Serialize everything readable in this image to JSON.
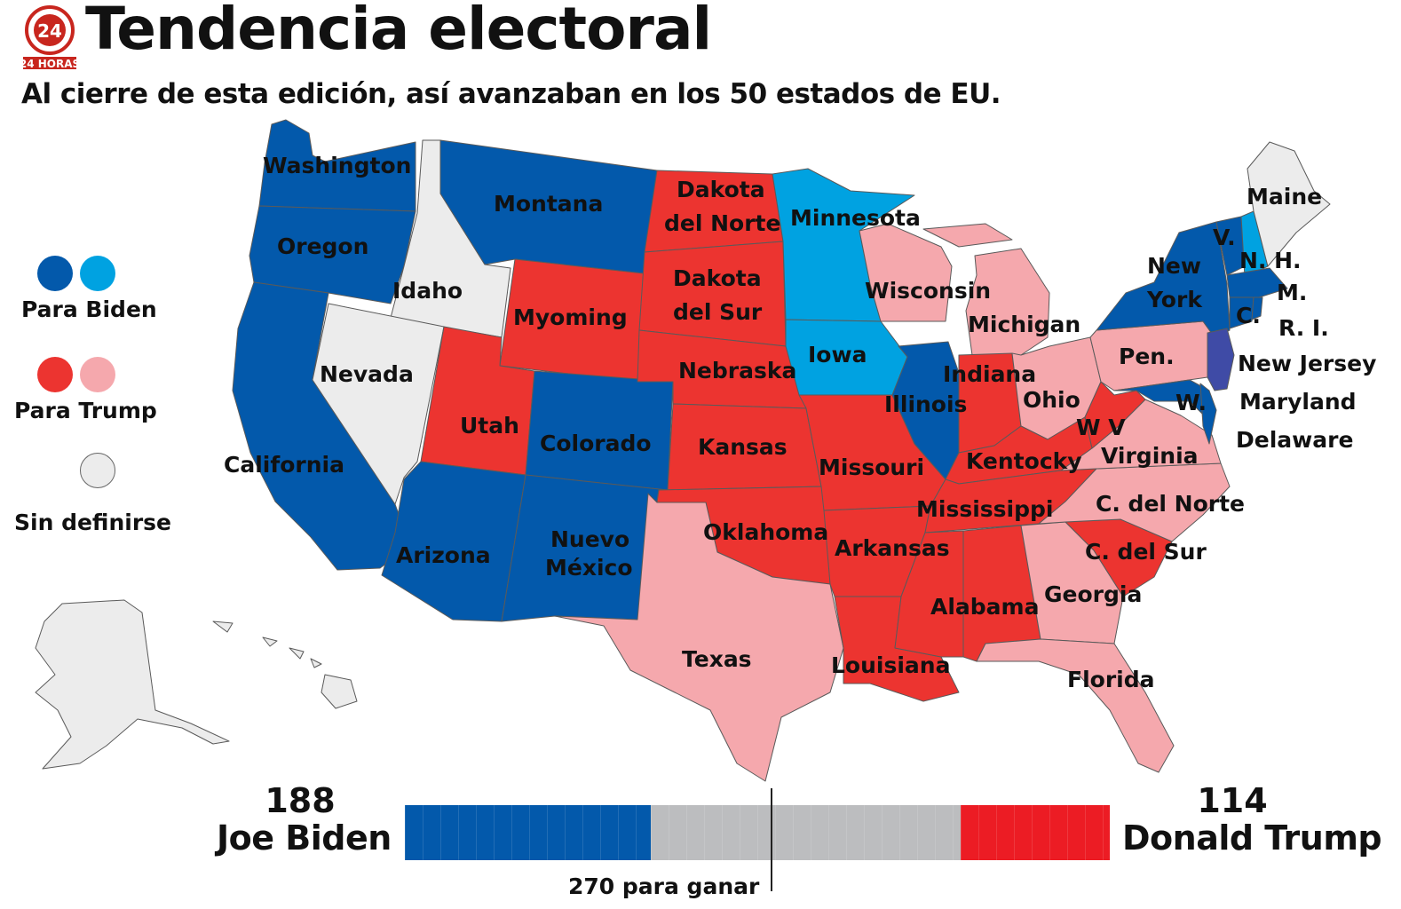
{
  "header": {
    "title": "Tendencia electoral",
    "subtitle": "Al cierre de esta edición, así avanzaban en los 50 estados de EU.",
    "logo_text": "24 HORAS"
  },
  "colors": {
    "biden": "#0359ab",
    "biden_lean": "#00a2e1",
    "trump": "#ec3430",
    "trump_lean": "#f5a8ad",
    "undecided": "#ececec",
    "tossup_purple": "#3f4ba6",
    "bar_gray": "#bcbdbf",
    "bar_red": "#ec1c24"
  },
  "legend": {
    "biden": "Para Biden",
    "trump": "Para Trump",
    "undecided": "Sin definirse"
  },
  "scores": {
    "biden_votes": "188",
    "biden_name": "Joe Biden",
    "trump_votes": "114",
    "trump_name": "Donald Trump",
    "to_win": "270 para ganar",
    "total": 538,
    "threshold": 270,
    "biden_value": 188,
    "trump_value": 114
  },
  "map": {
    "labels": {
      "wa": "Washington",
      "or": "Oregon",
      "ca": "California",
      "id": "Idaho",
      "nv": "Nevada",
      "mt": "Montana",
      "wy": "Myoming",
      "ut": "Utah",
      "co": "Colorado",
      "az": "Arizona",
      "nm1": "Nuevo",
      "nm2": "México",
      "nd1": "Dakota",
      "nd2": "del Norte",
      "sd1": "Dakota",
      "sd2": "del Sur",
      "ne": "Nebraska",
      "ks": "Kansas",
      "ok": "Oklahoma",
      "tx": "Texas",
      "mn": "Minnesota",
      "ia": "Iowa",
      "mo": "Missouri",
      "ar": "Arkansas",
      "la": "Louisiana",
      "wi": "Wisconsin",
      "il": "Illinois",
      "mi": "Michigan",
      "in": "Indiana",
      "oh": "Ohio",
      "ky": "Kentocky",
      "tn": "Mississippi",
      "ms": "Alabama",
      "ga": "Georgia",
      "fl": "Florida",
      "sc": "C. del Sur",
      "nc": "C. del Norte",
      "va": "Virginia",
      "wv": "W V",
      "pa": "Pen.",
      "ny1": "New",
      "ny2": "York",
      "vt": "V.",
      "nh": "N. H.",
      "me": "Maine",
      "ma": "M.",
      "ct": "C.",
      "ri": "R. I.",
      "nj": "New Jersey",
      "md": "Maryland",
      "de": "Delaware",
      "w": "W."
    }
  }
}
